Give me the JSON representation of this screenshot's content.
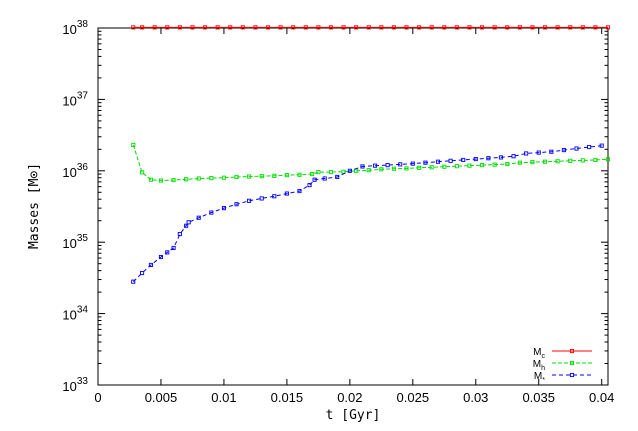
{
  "chart_data": {
    "type": "line",
    "xlabel": "t [Gyr]",
    "ylabel": "Masses [M⊙]",
    "xscale": "linear",
    "yscale": "log",
    "xlim": [
      0,
      0.0405
    ],
    "ylim": [
      1e+33,
      1e+38
    ],
    "x_ticks": [
      "0",
      "0.005",
      "0.01",
      "0.015",
      "0.02",
      "0.025",
      "0.03",
      "0.035",
      "0.04"
    ],
    "y_ticks": [
      {
        "base": "10",
        "exp": "33"
      },
      {
        "base": "10",
        "exp": "34"
      },
      {
        "base": "10",
        "exp": "35"
      },
      {
        "base": "10",
        "exp": "36"
      },
      {
        "base": "10",
        "exp": "37"
      },
      {
        "base": "10",
        "exp": "38"
      }
    ],
    "grid": false,
    "legend_position": "bottom-right",
    "series": [
      {
        "name": "M",
        "name_sub": "c",
        "color": "#ff0000",
        "dash": "",
        "x": [
          0.0028,
          0.0035,
          0.0045,
          0.0055,
          0.0065,
          0.0075,
          0.0085,
          0.0095,
          0.0105,
          0.0115,
          0.0125,
          0.0135,
          0.0145,
          0.0155,
          0.0165,
          0.0175,
          0.0185,
          0.0195,
          0.0205,
          0.0215,
          0.0225,
          0.0235,
          0.0245,
          0.0255,
          0.0265,
          0.0275,
          0.0285,
          0.0295,
          0.0305,
          0.0315,
          0.0325,
          0.0335,
          0.0345,
          0.0355,
          0.0365,
          0.0375,
          0.0385,
          0.0395,
          0.0405
        ],
        "y": [
          1.02e+38,
          1.02e+38,
          1.02e+38,
          1.02e+38,
          1.02e+38,
          1.02e+38,
          1.02e+38,
          1.02e+38,
          1.02e+38,
          1.02e+38,
          1.02e+38,
          1.02e+38,
          1.02e+38,
          1.02e+38,
          1.02e+38,
          1.02e+38,
          1.02e+38,
          1.02e+38,
          1.02e+38,
          1.02e+38,
          1.02e+38,
          1.02e+38,
          1.02e+38,
          1.02e+38,
          1.02e+38,
          1.02e+38,
          1.02e+38,
          1.02e+38,
          1.02e+38,
          1.02e+38,
          1.02e+38,
          1.02e+38,
          1.02e+38,
          1.02e+38,
          1.02e+38,
          1.02e+38,
          1.02e+38,
          1.02e+38,
          1.02e+38
        ]
      },
      {
        "name": "M",
        "name_sub": "h",
        "color": "#00dd00",
        "dash": "4,2",
        "x": [
          0.0028,
          0.0035,
          0.0042,
          0.005,
          0.006,
          0.007,
          0.008,
          0.009,
          0.01,
          0.011,
          0.012,
          0.013,
          0.014,
          0.015,
          0.016,
          0.017,
          0.0175,
          0.0185,
          0.0195,
          0.0205,
          0.0215,
          0.0225,
          0.0235,
          0.0245,
          0.0255,
          0.0265,
          0.0275,
          0.0285,
          0.0295,
          0.0305,
          0.0315,
          0.0325,
          0.0335,
          0.0345,
          0.0355,
          0.0365,
          0.0375,
          0.0385,
          0.0395,
          0.0405
        ],
        "y": [
          2.3e+36,
          9.5e+35,
          7.5e+35,
          7.3e+35,
          7.4e+35,
          7.6e+35,
          7.8e+35,
          7.9e+35,
          8e+35,
          8.2e+35,
          8.3e+35,
          8.4e+35,
          8.5e+35,
          8.7e+35,
          8.8e+35,
          9e+35,
          9.6e+35,
          9.6e+35,
          9.7e+35,
          1e+36,
          1.02e+36,
          1.05e+36,
          1.07e+36,
          1.08e+36,
          1.1e+36,
          1.12e+36,
          1.14e+36,
          1.16e+36,
          1.18e+36,
          1.2e+36,
          1.22e+36,
          1.24e+36,
          1.3e+36,
          1.32e+36,
          1.34e+36,
          1.36e+36,
          1.38e+36,
          1.4e+36,
          1.42e+36,
          1.45e+36
        ]
      },
      {
        "name": "M",
        "name_sub": "*",
        "color": "#0000ff",
        "dash": "4,3",
        "x": [
          0.0028,
          0.0035,
          0.0042,
          0.005,
          0.0055,
          0.006,
          0.0065,
          0.007,
          0.0072,
          0.008,
          0.009,
          0.01,
          0.011,
          0.012,
          0.013,
          0.014,
          0.015,
          0.016,
          0.0168,
          0.0172,
          0.018,
          0.019,
          0.02,
          0.021,
          0.022,
          0.023,
          0.024,
          0.025,
          0.026,
          0.027,
          0.028,
          0.029,
          0.03,
          0.031,
          0.032,
          0.033,
          0.034,
          0.035,
          0.036,
          0.037,
          0.038,
          0.039,
          0.04
        ],
        "y": [
          2.8e+34,
          3.7e+34,
          4.8e+34,
          6.2e+34,
          7.2e+34,
          8.3e+34,
          1.3e+35,
          1.7e+35,
          1.9e+35,
          2.2e+35,
          2.6e+35,
          3e+35,
          3.4e+35,
          3.8e+35,
          4.1e+35,
          4.4e+35,
          4.8e+35,
          5.2e+35,
          6.3e+35,
          7.5e+35,
          7.8e+35,
          8.2e+35,
          1e+36,
          1.15e+36,
          1.18e+36,
          1.2e+36,
          1.23e+36,
          1.26e+36,
          1.3e+36,
          1.34e+36,
          1.38e+36,
          1.42e+36,
          1.46e+36,
          1.5e+36,
          1.54e+36,
          1.6e+36,
          1.75e+36,
          1.8e+36,
          1.85e+36,
          1.95e+36,
          2.05e+36,
          2.15e+36,
          2.25e+36
        ]
      }
    ]
  }
}
